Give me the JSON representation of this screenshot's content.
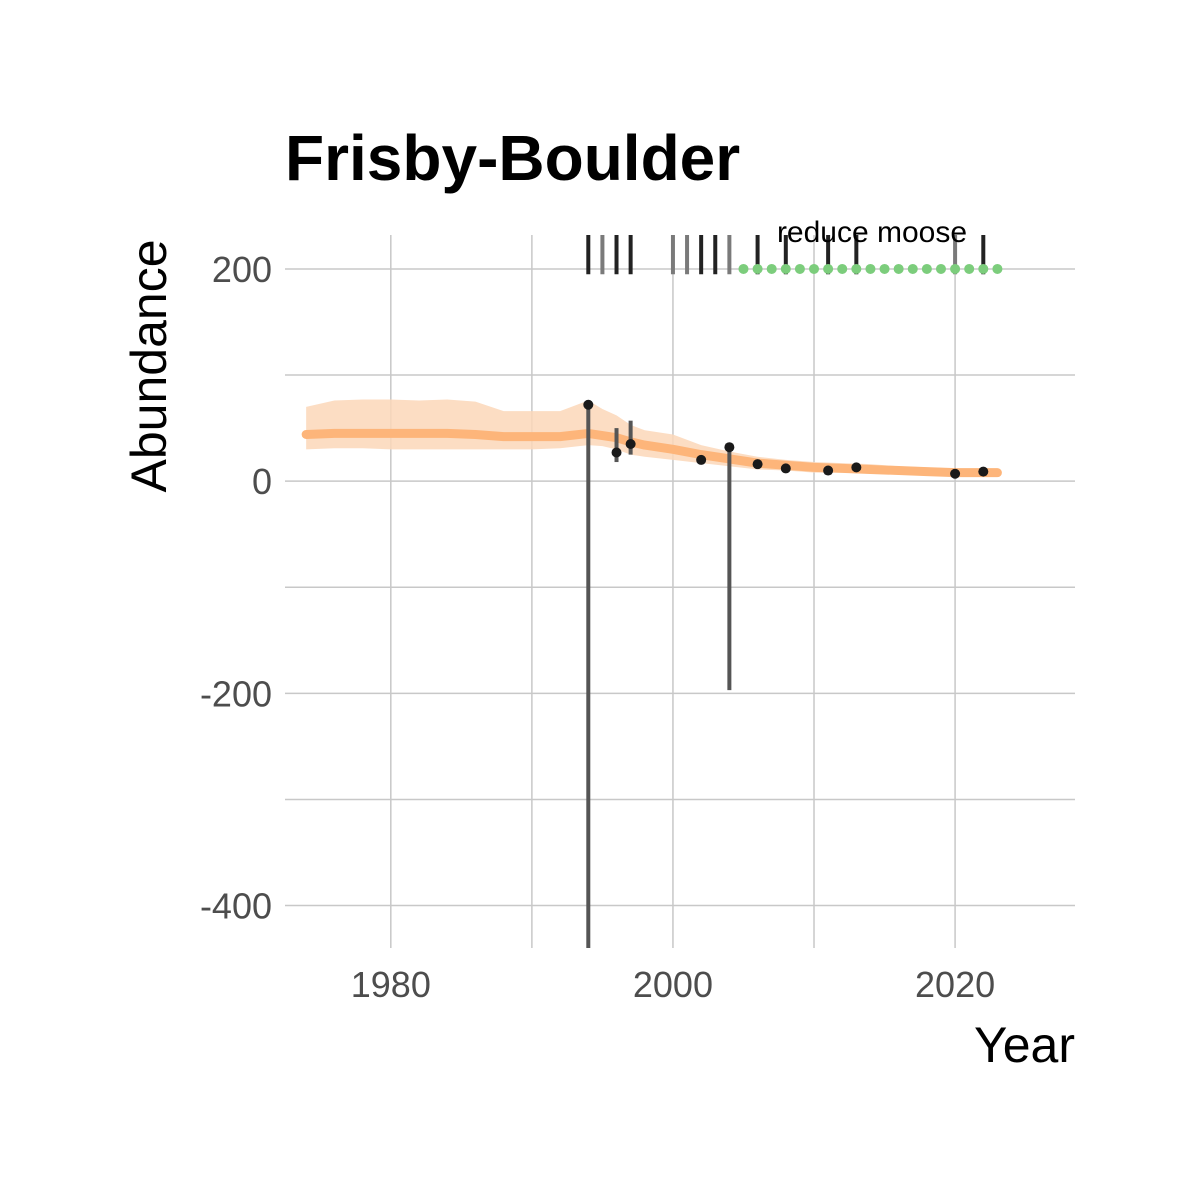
{
  "chart_data": {
    "type": "line",
    "title": "Frisby-Boulder",
    "xlabel": "Year",
    "ylabel": "Abundance",
    "xlim": [
      1972.5,
      2028.5
    ],
    "ylim": [
      -440,
      232
    ],
    "x_ticks": [
      1980,
      2000,
      2020
    ],
    "x_tick_labels": [
      "1980",
      "2000",
      "2020"
    ],
    "x_minor_ticks": [
      1990,
      2010
    ],
    "y_ticks": [
      -400,
      -200,
      0,
      200
    ],
    "y_tick_labels": [
      "-400",
      "-200",
      "0",
      "200"
    ],
    "y_minor_ticks": [
      -300,
      -100,
      100
    ],
    "grid": true,
    "legend": "none",
    "colors": {
      "trend_line": "#fdb57a",
      "ribbon": "#fbd7b9",
      "observations": "#1a1a1a",
      "error_bars": "#555555",
      "management": "#7ccd7c",
      "survey_marks": "#222222",
      "gridlines": "#c8c8c8"
    },
    "series": [
      {
        "kind": "fitted_trend",
        "x": [
          1974,
          1976,
          1978,
          1980,
          1982,
          1984,
          1986,
          1988,
          1990,
          1992,
          1994,
          1995,
          1996,
          1997,
          1998,
          2000,
          2002,
          2004,
          2006,
          2008,
          2010,
          2012,
          2014,
          2016,
          2018,
          2020,
          2022,
          2023
        ],
        "y": [
          44,
          45,
          45,
          45,
          45,
          45,
          44,
          42,
          42,
          42,
          45,
          43,
          41,
          37,
          34,
          30,
          25,
          21,
          17,
          15,
          13,
          12,
          11,
          10,
          9,
          8,
          8,
          8
        ],
        "lower": [
          30,
          31,
          31,
          30,
          30,
          30,
          30,
          30,
          30,
          31,
          34,
          33,
          30,
          25,
          23,
          20,
          17,
          14,
          11,
          10,
          8,
          8,
          7,
          7,
          6,
          6,
          6,
          6
        ],
        "upper": [
          70,
          76,
          77,
          77,
          76,
          77,
          75,
          66,
          66,
          66,
          76,
          68,
          62,
          53,
          48,
          44,
          34,
          28,
          23,
          20,
          18,
          17,
          16,
          14,
          13,
          12,
          11,
          11
        ]
      },
      {
        "kind": "observations",
        "x": [
          1994,
          1996,
          1997,
          2002,
          2004,
          2006,
          2008,
          2011,
          2013,
          2020,
          2022
        ],
        "y": [
          72,
          27,
          35,
          20,
          32,
          16,
          12,
          10,
          13,
          7,
          9
        ],
        "error_low": [
          -440,
          18,
          25,
          20,
          -197,
          16,
          12,
          10,
          13,
          7,
          9
        ],
        "error_high": [
          72,
          50,
          57,
          20,
          32,
          16,
          12,
          10,
          13,
          7,
          9
        ]
      }
    ],
    "survey_marks": [
      {
        "x": 1994,
        "dark": true
      },
      {
        "x": 1995,
        "dark": false
      },
      {
        "x": 1996,
        "dark": true
      },
      {
        "x": 1997,
        "dark": true
      },
      {
        "x": 2000,
        "dark": false
      },
      {
        "x": 2001,
        "dark": false
      },
      {
        "x": 2002,
        "dark": true
      },
      {
        "x": 2003,
        "dark": true
      },
      {
        "x": 2004,
        "dark": false
      },
      {
        "x": 2006,
        "dark": true
      },
      {
        "x": 2008,
        "dark": true
      },
      {
        "x": 2011,
        "dark": true
      },
      {
        "x": 2013,
        "dark": true
      },
      {
        "x": 2020,
        "dark": false
      },
      {
        "x": 2022,
        "dark": true
      }
    ],
    "management": {
      "label": "reduce moose",
      "y": 200,
      "x": [
        2005,
        2006,
        2007,
        2008,
        2009,
        2010,
        2011,
        2012,
        2013,
        2014,
        2015,
        2016,
        2017,
        2018,
        2019,
        2020,
        2021,
        2022,
        2023
      ]
    }
  }
}
